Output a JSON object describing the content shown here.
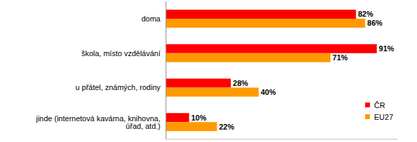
{
  "chart_data": {
    "type": "bar",
    "orientation": "horizontal",
    "categories": [
      "doma",
      "škola, místo vzdělávání",
      "u přátel, známých, rodiny",
      "jinde (internetová kavárna, knihovna, úřad, atd.)"
    ],
    "series": [
      {
        "name": "ČR",
        "color": "#ff0000",
        "values": [
          82,
          91,
          28,
          10
        ],
        "value_labels": [
          "82%",
          "91%",
          "28%",
          "10%"
        ]
      },
      {
        "name": "EU27",
        "color": "#ff9900",
        "values": [
          86,
          71,
          40,
          22
        ],
        "value_labels": [
          "86%",
          "71%",
          "40%",
          "22%"
        ]
      }
    ],
    "xlim": [
      0,
      100
    ],
    "tick_labels": "y",
    "data_labels": true,
    "legend": "right",
    "grid": false
  }
}
